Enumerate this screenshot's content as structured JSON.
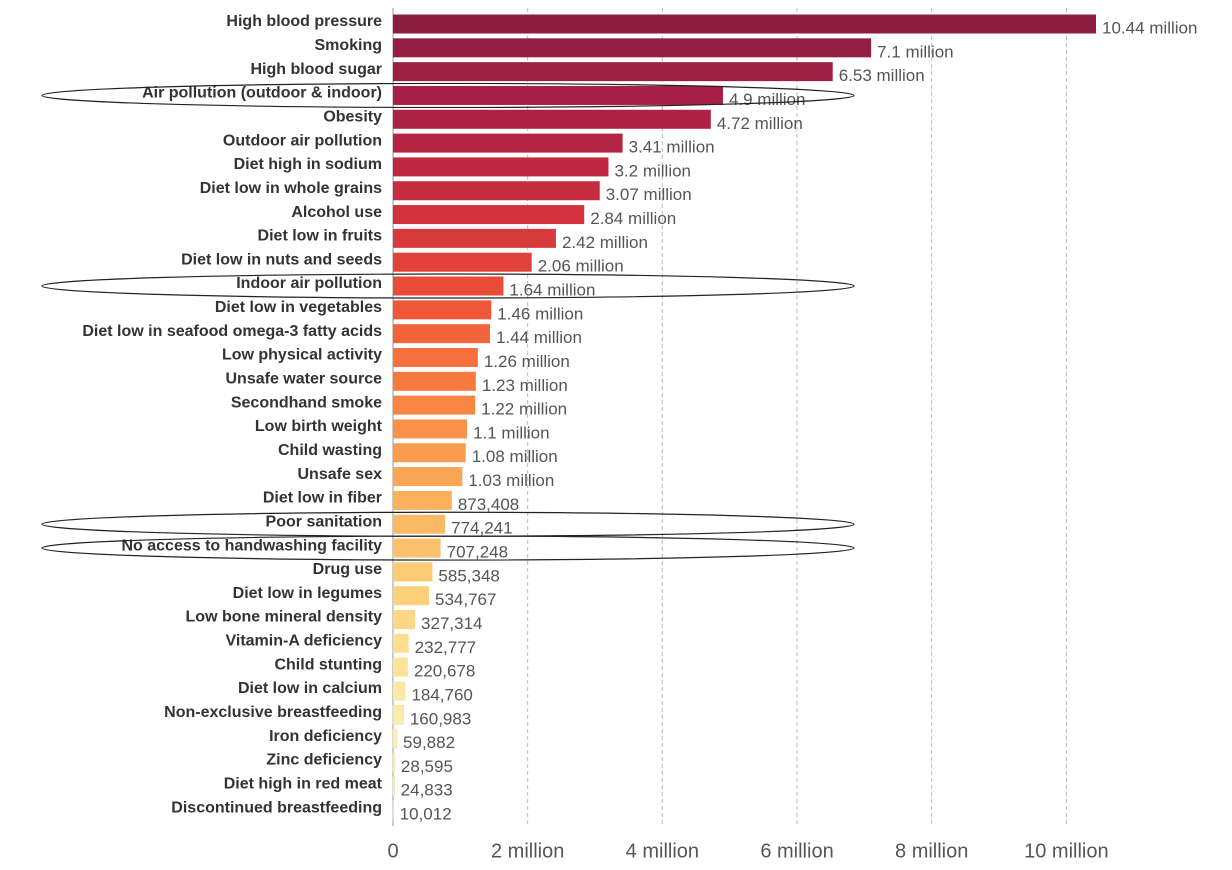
{
  "chart_data": {
    "type": "hbar",
    "categories": [
      "High blood pressure",
      "Smoking",
      "High blood sugar",
      "Air pollution (outdoor & indoor)",
      "Obesity",
      "Outdoor air pollution",
      "Diet high in sodium",
      "Diet low in whole grains",
      "Alcohol use",
      "Diet low in fruits",
      "Diet low in nuts and seeds",
      "Indoor air pollution",
      "Diet low in vegetables",
      "Diet low in seafood omega-3 fatty acids",
      "Low physical activity",
      "Unsafe water source",
      "Secondhand smoke",
      "Low birth weight",
      "Child wasting",
      "Unsafe sex",
      "Diet low in fiber",
      "Poor sanitation",
      "No access to handwashing facility",
      "Drug use",
      "Diet low in legumes",
      "Low bone mineral density",
      "Vitamin-A deficiency",
      "Child stunting",
      "Diet low in calcium",
      "Non-exclusive breastfeeding",
      "Iron deficiency",
      "Zinc deficiency",
      "Diet high in red meat",
      "Discontinued breastfeeding"
    ],
    "values": [
      10440000,
      7100000,
      6530000,
      4900000,
      4720000,
      3410000,
      3200000,
      3070000,
      2840000,
      2420000,
      2060000,
      1640000,
      1460000,
      1440000,
      1260000,
      1230000,
      1220000,
      1100000,
      1080000,
      1030000,
      873408,
      774241,
      707248,
      585348,
      534767,
      327314,
      232777,
      220678,
      184760,
      160983,
      59882,
      28595,
      24833,
      10012
    ],
    "value_labels": [
      "10.44 million",
      "7.1 million",
      "6.53 million",
      "4.9 million",
      "4.72 million",
      "3.41 million",
      "3.2 million",
      "3.07 million",
      "2.84 million",
      "2.42 million",
      "2.06 million",
      "1.64 million",
      "1.46 million",
      "1.44 million",
      "1.26 million",
      "1.23 million",
      "1.22 million",
      "1.1 million",
      "1.08 million",
      "1.03 million",
      "873,408",
      "774,241",
      "707,248",
      "585,348",
      "534,767",
      "327,314",
      "232,777",
      "220,678",
      "184,760",
      "160,983",
      "59,882",
      "28,595",
      "24,833",
      "10,012"
    ],
    "colors": [
      "#8c1d40",
      "#941e42",
      "#9c1f43",
      "#a52044",
      "#ad2144",
      "#b62444",
      "#be2843",
      "#c72c41",
      "#d0323e",
      "#d83a3b",
      "#e14239",
      "#e84c38",
      "#ee5838",
      "#f2643a",
      "#f5703c",
      "#f77b3e",
      "#f88642",
      "#f99148",
      "#fa9c4e",
      "#faa655",
      "#fbb05c",
      "#fbb964",
      "#fcc16c",
      "#fcc974",
      "#fdd17c",
      "#fdd785",
      "#fddd8f",
      "#fde299",
      "#fee6a3",
      "#feeaad",
      "#feedb7",
      "#fef0c0",
      "#fef3c8",
      "#fef5d0"
    ],
    "xlim": [
      0,
      10440000
    ],
    "xticks": [
      0,
      {
        "value": 2000000,
        "label": "2 million"
      },
      {
        "value": 4000000,
        "label": "4 million"
      },
      {
        "value": 6000000,
        "label": "6 million"
      },
      {
        "value": 8000000,
        "label": "8 million"
      },
      {
        "value": 10000000,
        "label": "10 million"
      }
    ],
    "grid": true,
    "highlight": [
      3,
      11,
      21,
      22
    ]
  }
}
